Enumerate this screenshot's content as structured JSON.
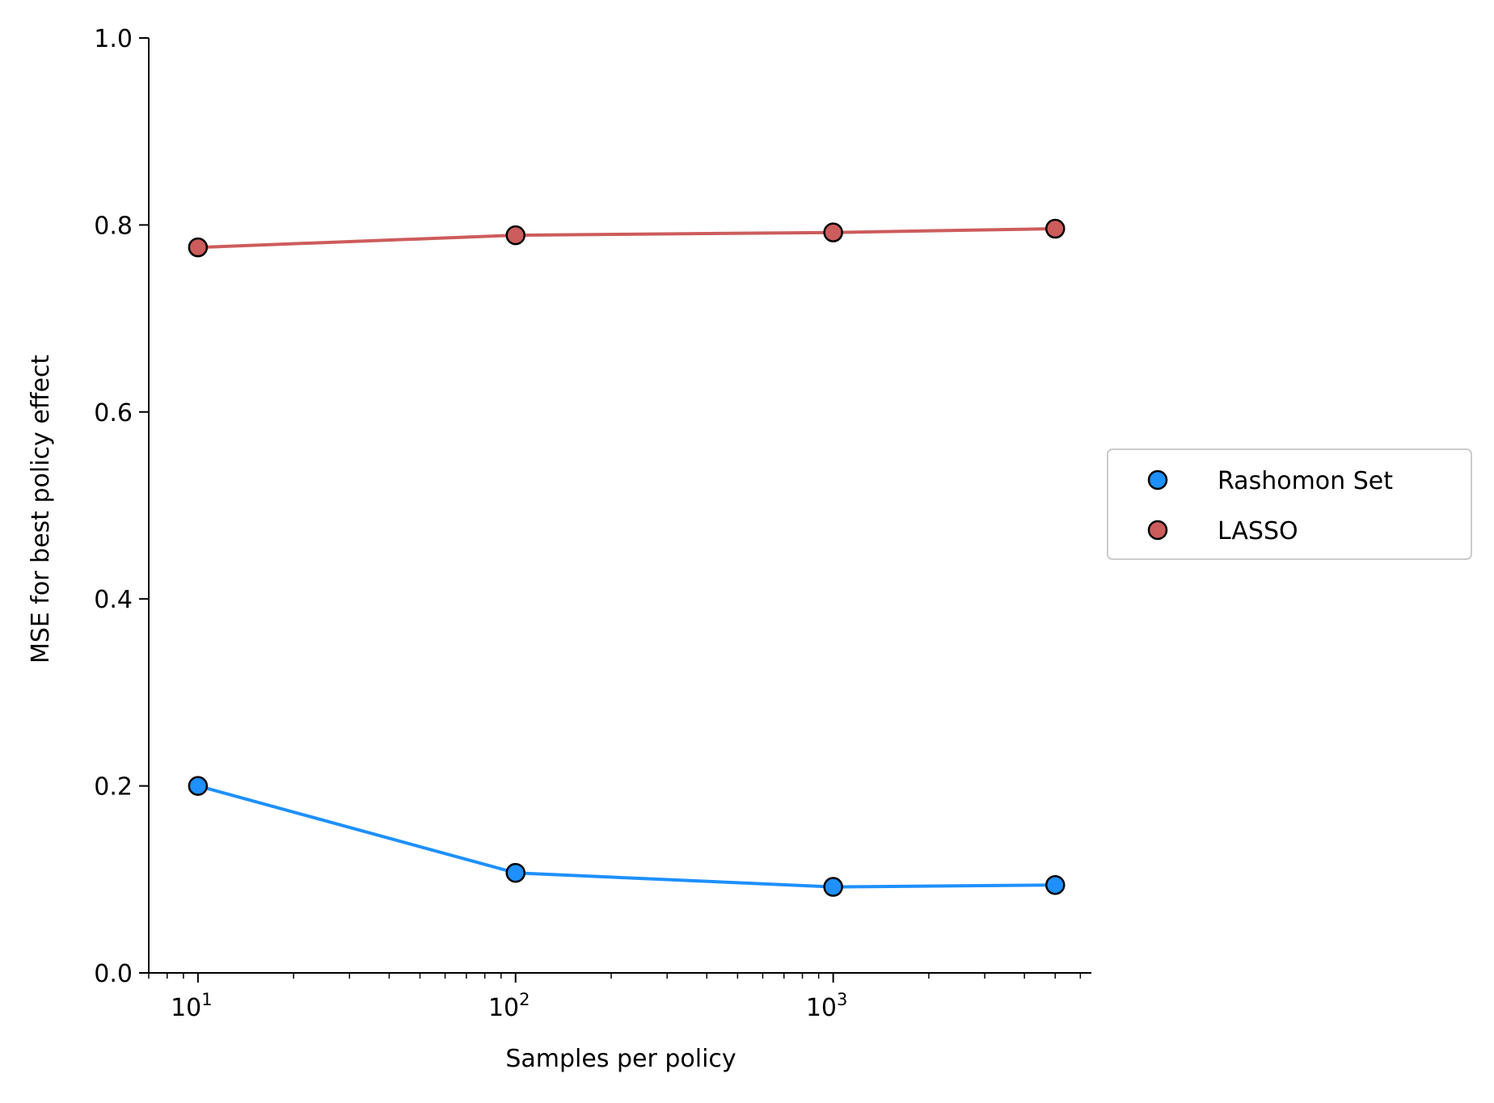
{
  "chart_data": {
    "type": "line",
    "title": "",
    "xlabel": "Samples per policy",
    "ylabel": "MSE for best policy effect",
    "xscale": "log",
    "xlim": [
      7,
      6500
    ],
    "ylim": [
      0,
      1.0
    ],
    "xticks": [
      {
        "value": 10,
        "base": "10",
        "exp": "1"
      },
      {
        "value": 100,
        "base": "10",
        "exp": "2"
      },
      {
        "value": 1000,
        "base": "10",
        "exp": "3"
      }
    ],
    "yticks": [
      {
        "value": 0.0,
        "label": "0.0"
      },
      {
        "value": 0.2,
        "label": "0.2"
      },
      {
        "value": 0.4,
        "label": "0.4"
      },
      {
        "value": 0.6,
        "label": "0.6"
      },
      {
        "value": 0.8,
        "label": "0.8"
      },
      {
        "value": 1.0,
        "label": "1.0"
      }
    ],
    "x": [
      10,
      100,
      1000,
      5000
    ],
    "series": [
      {
        "name": "Rashomon Set",
        "color": "#1e90ff",
        "values": [
          0.2,
          0.107,
          0.092,
          0.094
        ]
      },
      {
        "name": "LASSO",
        "color": "#cd5c5c",
        "values": [
          0.776,
          0.789,
          0.792,
          0.796
        ]
      }
    ],
    "grid": false,
    "legend": "center-right, outside plot area"
  }
}
